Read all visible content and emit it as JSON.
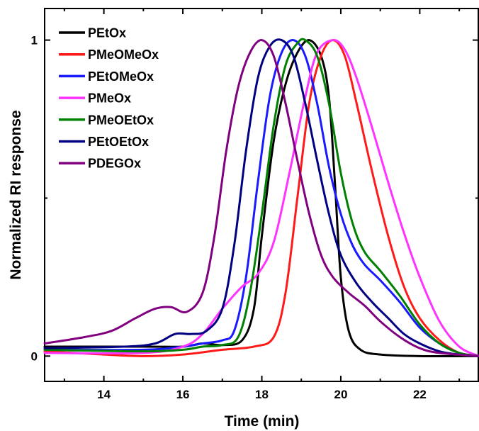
{
  "chart_data": {
    "type": "line",
    "title": "",
    "xlabel": "Time (min)",
    "ylabel": "Normalized RI response",
    "xlim": [
      12.5,
      23.5
    ],
    "ylim": [
      -0.08,
      1.1
    ],
    "x_ticks": [
      14,
      16,
      18,
      20,
      22
    ],
    "y_ticks": [
      0,
      1
    ],
    "legend_position": "top-left",
    "series": [
      {
        "name": "PEtOx",
        "color": "#000000",
        "points": [
          [
            12.5,
            0.03
          ],
          [
            15,
            0.03
          ],
          [
            16,
            0.03
          ],
          [
            16.5,
            0.04
          ],
          [
            17.0,
            0.035
          ],
          [
            17.5,
            0.05
          ],
          [
            17.8,
            0.15
          ],
          [
            18.0,
            0.38
          ],
          [
            18.3,
            0.68
          ],
          [
            18.6,
            0.86
          ],
          [
            18.9,
            0.96
          ],
          [
            19.2,
            1.0
          ],
          [
            19.5,
            0.95
          ],
          [
            19.7,
            0.82
          ],
          [
            19.85,
            0.55
          ],
          [
            20.0,
            0.25
          ],
          [
            20.2,
            0.08
          ],
          [
            20.5,
            0.02
          ],
          [
            21,
            0.005
          ],
          [
            22,
            0.0
          ],
          [
            23.5,
            0.0
          ]
        ]
      },
      {
        "name": "PMeOMeOx",
        "color": "#ff1a1a",
        "points": [
          [
            12.5,
            0.015
          ],
          [
            14,
            0.005
          ],
          [
            15,
            0.0
          ],
          [
            16,
            0.005
          ],
          [
            17,
            0.02
          ],
          [
            17.8,
            0.03
          ],
          [
            18.3,
            0.06
          ],
          [
            18.6,
            0.2
          ],
          [
            18.9,
            0.5
          ],
          [
            19.2,
            0.8
          ],
          [
            19.5,
            0.95
          ],
          [
            19.8,
            1.0
          ],
          [
            20.1,
            0.95
          ],
          [
            20.4,
            0.8
          ],
          [
            20.8,
            0.58
          ],
          [
            21.2,
            0.38
          ],
          [
            21.6,
            0.22
          ],
          [
            22.0,
            0.12
          ],
          [
            22.5,
            0.05
          ],
          [
            23.0,
            0.01
          ],
          [
            23.5,
            0.0
          ]
        ]
      },
      {
        "name": "PEtOMeOx",
        "color": "#1a1aff",
        "points": [
          [
            12.5,
            0.02
          ],
          [
            15,
            0.02
          ],
          [
            16,
            0.03
          ],
          [
            16.5,
            0.04
          ],
          [
            17.0,
            0.05
          ],
          [
            17.3,
            0.08
          ],
          [
            17.6,
            0.25
          ],
          [
            17.9,
            0.55
          ],
          [
            18.2,
            0.82
          ],
          [
            18.5,
            0.96
          ],
          [
            18.8,
            1.0
          ],
          [
            19.1,
            0.95
          ],
          [
            19.4,
            0.8
          ],
          [
            19.7,
            0.6
          ],
          [
            20.0,
            0.45
          ],
          [
            20.3,
            0.35
          ],
          [
            20.6,
            0.29
          ],
          [
            21.0,
            0.24
          ],
          [
            21.5,
            0.17
          ],
          [
            22.0,
            0.09
          ],
          [
            22.5,
            0.04
          ],
          [
            23.0,
            0.01
          ],
          [
            23.5,
            0.0
          ]
        ]
      },
      {
        "name": "PMeOx",
        "color": "#ff33ff",
        "points": [
          [
            12.5,
            0.01
          ],
          [
            15,
            0.01
          ],
          [
            16,
            0.03
          ],
          [
            16.5,
            0.07
          ],
          [
            17.0,
            0.15
          ],
          [
            17.5,
            0.22
          ],
          [
            17.9,
            0.26
          ],
          [
            18.3,
            0.36
          ],
          [
            18.7,
            0.58
          ],
          [
            19.1,
            0.82
          ],
          [
            19.4,
            0.96
          ],
          [
            19.8,
            1.0
          ],
          [
            20.1,
            0.97
          ],
          [
            20.4,
            0.88
          ],
          [
            20.8,
            0.72
          ],
          [
            21.2,
            0.55
          ],
          [
            21.6,
            0.39
          ],
          [
            22.0,
            0.25
          ],
          [
            22.5,
            0.11
          ],
          [
            23.0,
            0.03
          ],
          [
            23.5,
            0.0
          ]
        ]
      },
      {
        "name": "PMeOEtOx",
        "color": "#008000",
        "points": [
          [
            12.5,
            0.02
          ],
          [
            15,
            0.015
          ],
          [
            16,
            0.02
          ],
          [
            16.5,
            0.03
          ],
          [
            17.0,
            0.035
          ],
          [
            17.4,
            0.06
          ],
          [
            17.7,
            0.2
          ],
          [
            18.0,
            0.45
          ],
          [
            18.3,
            0.73
          ],
          [
            18.6,
            0.92
          ],
          [
            18.9,
            0.99
          ],
          [
            19.1,
            1.0
          ],
          [
            19.4,
            0.95
          ],
          [
            19.7,
            0.8
          ],
          [
            20.0,
            0.58
          ],
          [
            20.3,
            0.42
          ],
          [
            20.6,
            0.33
          ],
          [
            21.0,
            0.27
          ],
          [
            21.5,
            0.19
          ],
          [
            22.0,
            0.1
          ],
          [
            22.5,
            0.04
          ],
          [
            23.0,
            0.01
          ],
          [
            23.5,
            0.0
          ]
        ]
      },
      {
        "name": "PEtOEtOx",
        "color": "#000080",
        "points": [
          [
            12.5,
            0.025
          ],
          [
            14.5,
            0.03
          ],
          [
            15.3,
            0.04
          ],
          [
            15.8,
            0.07
          ],
          [
            16.2,
            0.07
          ],
          [
            16.6,
            0.08
          ],
          [
            17.0,
            0.15
          ],
          [
            17.3,
            0.35
          ],
          [
            17.6,
            0.65
          ],
          [
            17.9,
            0.88
          ],
          [
            18.2,
            0.98
          ],
          [
            18.5,
            1.0
          ],
          [
            18.8,
            0.95
          ],
          [
            19.1,
            0.8
          ],
          [
            19.4,
            0.62
          ],
          [
            19.7,
            0.45
          ],
          [
            20.0,
            0.32
          ],
          [
            20.4,
            0.23
          ],
          [
            20.8,
            0.17
          ],
          [
            21.2,
            0.12
          ],
          [
            21.6,
            0.07
          ],
          [
            22.0,
            0.04
          ],
          [
            22.5,
            0.015
          ],
          [
            23.0,
            0.005
          ],
          [
            23.5,
            0.0
          ]
        ]
      },
      {
        "name": "PDEGOx",
        "color": "#800080",
        "points": [
          [
            12.5,
            0.04
          ],
          [
            13.5,
            0.06
          ],
          [
            14.2,
            0.08
          ],
          [
            14.8,
            0.12
          ],
          [
            15.3,
            0.15
          ],
          [
            15.7,
            0.155
          ],
          [
            16.1,
            0.14
          ],
          [
            16.5,
            0.2
          ],
          [
            16.8,
            0.38
          ],
          [
            17.1,
            0.65
          ],
          [
            17.4,
            0.85
          ],
          [
            17.7,
            0.96
          ],
          [
            18.0,
            1.0
          ],
          [
            18.3,
            0.95
          ],
          [
            18.6,
            0.8
          ],
          [
            18.9,
            0.62
          ],
          [
            19.2,
            0.45
          ],
          [
            19.5,
            0.32
          ],
          [
            19.8,
            0.25
          ],
          [
            20.2,
            0.2
          ],
          [
            20.6,
            0.16
          ],
          [
            21.0,
            0.11
          ],
          [
            21.5,
            0.06
          ],
          [
            22.0,
            0.025
          ],
          [
            22.5,
            0.01
          ],
          [
            23.5,
            0.0
          ]
        ]
      }
    ]
  }
}
